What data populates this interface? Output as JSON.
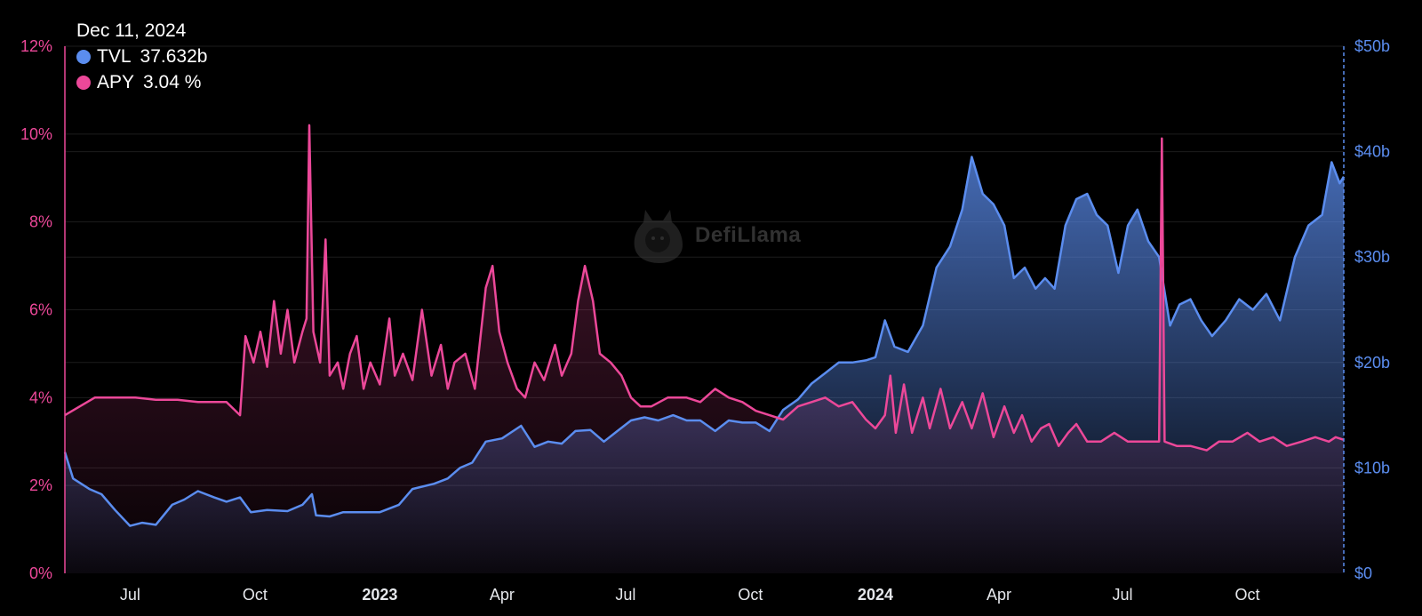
{
  "tooltip": {
    "date": "Dec 11, 2024",
    "tvl_label": "TVL",
    "tvl_value": "37.632b",
    "apy_label": "APY",
    "apy_value": "3.04 %"
  },
  "watermark": "DefiLlama",
  "colors": {
    "tvl": "#5b8def",
    "apy": "#ec4899",
    "background": "#000000",
    "grid": "#1c1c1c"
  },
  "chart_data": {
    "type": "area",
    "x_axis": {
      "range": [
        "2022-05-14",
        "2024-12-11"
      ],
      "ticks": [
        {
          "label": "Jul",
          "date": "2022-07-01",
          "bold": false
        },
        {
          "label": "Oct",
          "date": "2022-10-01",
          "bold": false
        },
        {
          "label": "2023",
          "date": "2023-01-01",
          "bold": true
        },
        {
          "label": "Apr",
          "date": "2023-04-01",
          "bold": false
        },
        {
          "label": "Jul",
          "date": "2023-07-01",
          "bold": false
        },
        {
          "label": "Oct",
          "date": "2023-10-01",
          "bold": false
        },
        {
          "label": "2024",
          "date": "2024-01-01",
          "bold": true
        },
        {
          "label": "Apr",
          "date": "2024-04-01",
          "bold": false
        },
        {
          "label": "Jul",
          "date": "2024-07-01",
          "bold": false
        },
        {
          "label": "Oct",
          "date": "2024-10-01",
          "bold": false
        }
      ]
    },
    "y_left": {
      "unit": "%",
      "range": [
        0,
        12
      ],
      "ticks": [
        "0%",
        "2%",
        "4%",
        "6%",
        "8%",
        "10%",
        "12%"
      ]
    },
    "y_right": {
      "unit": "$b",
      "range": [
        0,
        50
      ],
      "ticks": [
        "$0",
        "$10b",
        "$20b",
        "$30b",
        "$40b",
        "$50b"
      ]
    },
    "grid": true,
    "legend_position": "top-left",
    "series": [
      {
        "name": "TVL",
        "axis": "right",
        "unit": "$b",
        "points": [
          [
            "2022-05-14",
            11.5
          ],
          [
            "2022-05-20",
            9.0
          ],
          [
            "2022-06-01",
            8.0
          ],
          [
            "2022-06-10",
            7.5
          ],
          [
            "2022-06-20",
            6.0
          ],
          [
            "2022-07-01",
            4.5
          ],
          [
            "2022-07-10",
            4.8
          ],
          [
            "2022-07-20",
            4.6
          ],
          [
            "2022-08-01",
            6.5
          ],
          [
            "2022-08-10",
            7.0
          ],
          [
            "2022-08-20",
            7.8
          ],
          [
            "2022-09-01",
            7.2
          ],
          [
            "2022-09-10",
            6.8
          ],
          [
            "2022-09-20",
            7.2
          ],
          [
            "2022-09-28",
            5.8
          ],
          [
            "2022-10-10",
            6.0
          ],
          [
            "2022-10-25",
            5.9
          ],
          [
            "2022-11-05",
            6.5
          ],
          [
            "2022-11-12",
            7.5
          ],
          [
            "2022-11-15",
            5.5
          ],
          [
            "2022-11-25",
            5.4
          ],
          [
            "2022-12-05",
            5.8
          ],
          [
            "2022-12-20",
            5.8
          ],
          [
            "2023-01-01",
            5.8
          ],
          [
            "2023-01-15",
            6.5
          ],
          [
            "2023-01-25",
            8.0
          ],
          [
            "2023-02-10",
            8.5
          ],
          [
            "2023-02-20",
            9.0
          ],
          [
            "2023-03-01",
            10.0
          ],
          [
            "2023-03-10",
            10.5
          ],
          [
            "2023-03-20",
            12.5
          ],
          [
            "2023-04-01",
            12.8
          ],
          [
            "2023-04-15",
            14.0
          ],
          [
            "2023-04-25",
            12.0
          ],
          [
            "2023-05-05",
            12.5
          ],
          [
            "2023-05-15",
            12.3
          ],
          [
            "2023-05-25",
            13.5
          ],
          [
            "2023-06-05",
            13.6
          ],
          [
            "2023-06-15",
            12.5
          ],
          [
            "2023-06-25",
            13.5
          ],
          [
            "2023-07-05",
            14.5
          ],
          [
            "2023-07-15",
            14.8
          ],
          [
            "2023-07-25",
            14.5
          ],
          [
            "2023-08-05",
            15.0
          ],
          [
            "2023-08-15",
            14.5
          ],
          [
            "2023-08-25",
            14.5
          ],
          [
            "2023-09-05",
            13.5
          ],
          [
            "2023-09-15",
            14.5
          ],
          [
            "2023-09-25",
            14.3
          ],
          [
            "2023-10-05",
            14.3
          ],
          [
            "2023-10-15",
            13.5
          ],
          [
            "2023-10-25",
            15.5
          ],
          [
            "2023-11-05",
            16.5
          ],
          [
            "2023-11-15",
            18.0
          ],
          [
            "2023-11-25",
            19.0
          ],
          [
            "2023-12-05",
            20.0
          ],
          [
            "2023-12-15",
            20.0
          ],
          [
            "2023-12-25",
            20.2
          ],
          [
            "2024-01-01",
            20.5
          ],
          [
            "2024-01-08",
            24.0
          ],
          [
            "2024-01-15",
            21.5
          ],
          [
            "2024-01-25",
            21.0
          ],
          [
            "2024-02-05",
            23.5
          ],
          [
            "2024-02-15",
            29.0
          ],
          [
            "2024-02-25",
            31.0
          ],
          [
            "2024-03-05",
            34.5
          ],
          [
            "2024-03-12",
            39.5
          ],
          [
            "2024-03-20",
            36.0
          ],
          [
            "2024-03-28",
            35.0
          ],
          [
            "2024-04-05",
            33.0
          ],
          [
            "2024-04-12",
            28.0
          ],
          [
            "2024-04-20",
            29.0
          ],
          [
            "2024-04-28",
            27.0
          ],
          [
            "2024-05-05",
            28.0
          ],
          [
            "2024-05-12",
            27.0
          ],
          [
            "2024-05-20",
            33.0
          ],
          [
            "2024-05-28",
            35.5
          ],
          [
            "2024-06-05",
            36.0
          ],
          [
            "2024-06-12",
            34.0
          ],
          [
            "2024-06-20",
            33.0
          ],
          [
            "2024-06-28",
            28.5
          ],
          [
            "2024-07-05",
            33.0
          ],
          [
            "2024-07-12",
            34.5
          ],
          [
            "2024-07-20",
            31.5
          ],
          [
            "2024-07-28",
            30.0
          ],
          [
            "2024-08-05",
            23.5
          ],
          [
            "2024-08-12",
            25.5
          ],
          [
            "2024-08-20",
            26.0
          ],
          [
            "2024-08-28",
            24.0
          ],
          [
            "2024-09-05",
            22.5
          ],
          [
            "2024-09-15",
            24.0
          ],
          [
            "2024-09-25",
            26.0
          ],
          [
            "2024-10-05",
            25.0
          ],
          [
            "2024-10-15",
            26.5
          ],
          [
            "2024-10-25",
            24.0
          ],
          [
            "2024-11-05",
            30.0
          ],
          [
            "2024-11-15",
            33.0
          ],
          [
            "2024-11-25",
            34.0
          ],
          [
            "2024-12-02",
            39.0
          ],
          [
            "2024-12-08",
            37.0
          ],
          [
            "2024-12-11",
            37.632
          ]
        ]
      },
      {
        "name": "APY",
        "axis": "left",
        "unit": "%",
        "points": [
          [
            "2022-05-14",
            3.6
          ],
          [
            "2022-05-25",
            3.8
          ],
          [
            "2022-06-05",
            4.0
          ],
          [
            "2022-06-20",
            4.0
          ],
          [
            "2022-07-05",
            4.0
          ],
          [
            "2022-07-20",
            3.95
          ],
          [
            "2022-08-05",
            3.95
          ],
          [
            "2022-08-20",
            3.9
          ],
          [
            "2022-09-10",
            3.9
          ],
          [
            "2022-09-20",
            3.6
          ],
          [
            "2022-09-24",
            5.4
          ],
          [
            "2022-09-30",
            4.8
          ],
          [
            "2022-10-05",
            5.5
          ],
          [
            "2022-10-10",
            4.7
          ],
          [
            "2022-10-15",
            6.2
          ],
          [
            "2022-10-20",
            5.0
          ],
          [
            "2022-10-25",
            6.0
          ],
          [
            "2022-10-30",
            4.8
          ],
          [
            "2022-11-05",
            5.5
          ],
          [
            "2022-11-08",
            5.8
          ],
          [
            "2022-11-10",
            10.2
          ],
          [
            "2022-11-13",
            5.5
          ],
          [
            "2022-11-18",
            4.8
          ],
          [
            "2022-11-22",
            7.6
          ],
          [
            "2022-11-25",
            4.5
          ],
          [
            "2022-12-01",
            4.8
          ],
          [
            "2022-12-05",
            4.2
          ],
          [
            "2022-12-10",
            5.0
          ],
          [
            "2022-12-15",
            5.4
          ],
          [
            "2022-12-20",
            4.2
          ],
          [
            "2022-12-25",
            4.8
          ],
          [
            "2023-01-01",
            4.3
          ],
          [
            "2023-01-08",
            5.8
          ],
          [
            "2023-01-12",
            4.5
          ],
          [
            "2023-01-18",
            5.0
          ],
          [
            "2023-01-25",
            4.4
          ],
          [
            "2023-02-01",
            6.0
          ],
          [
            "2023-02-08",
            4.5
          ],
          [
            "2023-02-15",
            5.2
          ],
          [
            "2023-02-20",
            4.2
          ],
          [
            "2023-02-25",
            4.8
          ],
          [
            "2023-03-05",
            5.0
          ],
          [
            "2023-03-12",
            4.2
          ],
          [
            "2023-03-20",
            6.5
          ],
          [
            "2023-03-25",
            7.0
          ],
          [
            "2023-03-30",
            5.5
          ],
          [
            "2023-04-05",
            4.8
          ],
          [
            "2023-04-12",
            4.2
          ],
          [
            "2023-04-18",
            4.0
          ],
          [
            "2023-04-25",
            4.8
          ],
          [
            "2023-05-02",
            4.4
          ],
          [
            "2023-05-10",
            5.2
          ],
          [
            "2023-05-15",
            4.5
          ],
          [
            "2023-05-22",
            5.0
          ],
          [
            "2023-05-27",
            6.2
          ],
          [
            "2023-06-01",
            7.0
          ],
          [
            "2023-06-07",
            6.2
          ],
          [
            "2023-06-12",
            5.0
          ],
          [
            "2023-06-20",
            4.8
          ],
          [
            "2023-06-28",
            4.5
          ],
          [
            "2023-07-05",
            4.0
          ],
          [
            "2023-07-12",
            3.8
          ],
          [
            "2023-07-20",
            3.8
          ],
          [
            "2023-08-01",
            4.0
          ],
          [
            "2023-08-15",
            4.0
          ],
          [
            "2023-08-25",
            3.9
          ],
          [
            "2023-09-05",
            4.2
          ],
          [
            "2023-09-15",
            4.0
          ],
          [
            "2023-09-25",
            3.9
          ],
          [
            "2023-10-05",
            3.7
          ],
          [
            "2023-10-15",
            3.6
          ],
          [
            "2023-10-25",
            3.5
          ],
          [
            "2023-11-05",
            3.8
          ],
          [
            "2023-11-15",
            3.9
          ],
          [
            "2023-11-25",
            4.0
          ],
          [
            "2023-12-05",
            3.8
          ],
          [
            "2023-12-15",
            3.9
          ],
          [
            "2023-12-25",
            3.5
          ],
          [
            "2024-01-01",
            3.3
          ],
          [
            "2024-01-08",
            3.6
          ],
          [
            "2024-01-12",
            4.5
          ],
          [
            "2024-01-16",
            3.2
          ],
          [
            "2024-01-22",
            4.3
          ],
          [
            "2024-01-28",
            3.2
          ],
          [
            "2024-02-05",
            4.0
          ],
          [
            "2024-02-10",
            3.3
          ],
          [
            "2024-02-18",
            4.2
          ],
          [
            "2024-02-25",
            3.3
          ],
          [
            "2024-03-05",
            3.9
          ],
          [
            "2024-03-12",
            3.3
          ],
          [
            "2024-03-20",
            4.1
          ],
          [
            "2024-03-28",
            3.1
          ],
          [
            "2024-04-05",
            3.8
          ],
          [
            "2024-04-12",
            3.2
          ],
          [
            "2024-04-18",
            3.6
          ],
          [
            "2024-04-25",
            3.0
          ],
          [
            "2024-05-02",
            3.3
          ],
          [
            "2024-05-08",
            3.4
          ],
          [
            "2024-05-15",
            2.9
          ],
          [
            "2024-05-22",
            3.2
          ],
          [
            "2024-05-28",
            3.4
          ],
          [
            "2024-06-05",
            3.0
          ],
          [
            "2024-06-15",
            3.0
          ],
          [
            "2024-06-25",
            3.2
          ],
          [
            "2024-07-05",
            3.0
          ],
          [
            "2024-07-15",
            3.0
          ],
          [
            "2024-07-28",
            3.0
          ],
          [
            "2024-07-30",
            9.9
          ],
          [
            "2024-08-01",
            3.0
          ],
          [
            "2024-08-10",
            2.9
          ],
          [
            "2024-08-20",
            2.9
          ],
          [
            "2024-09-01",
            2.8
          ],
          [
            "2024-09-10",
            3.0
          ],
          [
            "2024-09-20",
            3.0
          ],
          [
            "2024-10-01",
            3.2
          ],
          [
            "2024-10-10",
            3.0
          ],
          [
            "2024-10-20",
            3.1
          ],
          [
            "2024-10-30",
            2.9
          ],
          [
            "2024-11-10",
            3.0
          ],
          [
            "2024-11-20",
            3.1
          ],
          [
            "2024-11-30",
            3.0
          ],
          [
            "2024-12-05",
            3.1
          ],
          [
            "2024-12-11",
            3.04
          ]
        ]
      }
    ]
  }
}
